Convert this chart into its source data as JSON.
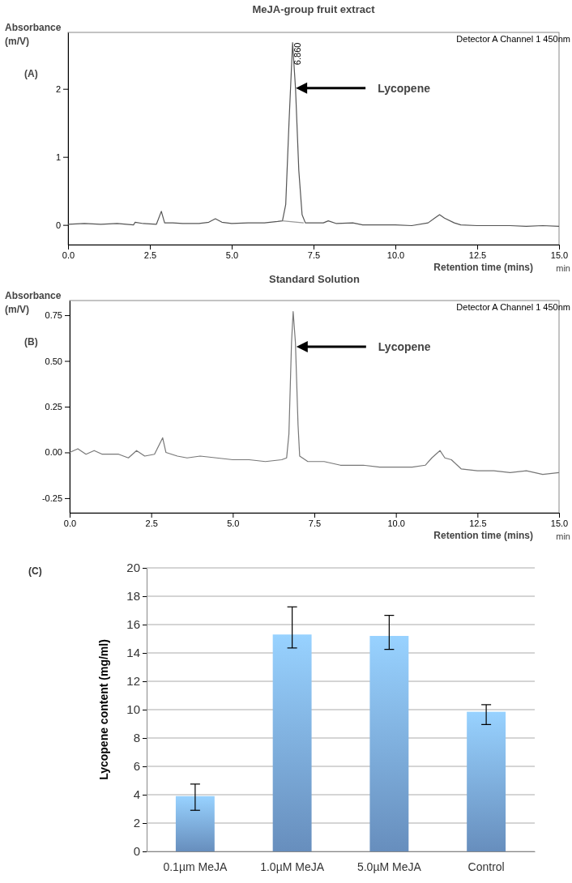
{
  "chart_data": [
    {
      "type": "line",
      "title": "MeJA-group fruit extract",
      "xlabel": "Retention time (mins)",
      "ylabel": "Absorbance (m/V)",
      "xlim": [
        0,
        15
      ],
      "ylim": [
        -0.29,
        2.83
      ],
      "xticks": [
        {
          "value": 0,
          "label": "0.0"
        },
        {
          "value": 2.5,
          "label": "2.5"
        },
        {
          "value": 5,
          "label": "5.0"
        },
        {
          "value": 7.5,
          "label": "7.5"
        },
        {
          "value": 10,
          "label": "10.0"
        },
        {
          "value": 12.5,
          "label": "12.5"
        },
        {
          "value": 15,
          "label": "15.0"
        }
      ],
      "yticks": [
        0,
        1,
        2
      ],
      "series": [
        {
          "color": "#555555",
          "x": [
            0,
            0.5,
            1,
            1.5,
            2,
            2.05,
            2.3,
            2.7,
            2.85,
            2.95,
            3.2,
            3.5,
            4,
            4.3,
            4.5,
            4.7,
            5,
            5.5,
            6,
            6.4,
            6.55,
            6.65,
            6.75,
            6.86,
            6.95,
            7.05,
            7.15,
            7.25,
            7.5,
            7.8,
            7.95,
            8.2,
            8.7,
            9,
            9.5,
            10,
            10.5,
            11,
            11.2,
            11.35,
            11.5,
            11.8,
            12,
            12.5,
            13,
            13.5,
            14,
            14.5,
            15
          ],
          "values": [
            0.01,
            0.02,
            0.01,
            0.02,
            0,
            0.04,
            0.02,
            0.01,
            0.2,
            0.03,
            0.03,
            0.02,
            0.02,
            0.04,
            0.09,
            0.04,
            0.02,
            0.03,
            0.03,
            0.05,
            0.06,
            0.3,
            1.5,
            2.68,
            2,
            0.8,
            0.15,
            0.03,
            0.03,
            0.03,
            0.06,
            0.02,
            0.03,
            0,
            0,
            0,
            -0.01,
            0.03,
            0.1,
            0.15,
            0.1,
            0.03,
            0,
            -0.01,
            -0.01,
            -0.01,
            -0.02,
            -0.01,
            -0.02
          ]
        },
        {
          "color": "#999999",
          "x": [
            6.55,
            7.2
          ],
          "values": [
            0.06,
            0.03
          ]
        }
      ],
      "annotations": [
        "Detector A Channel 1 450nm",
        "(A)",
        "min",
        "Lycopene",
        {
          "text": "6.860",
          "x": 6.86,
          "y": 2.68
        }
      ]
    },
    {
      "type": "line",
      "title": "Standard Solution",
      "xlabel": "Retention time (mins)",
      "ylabel": "Absorbance (m/V)",
      "xlim": [
        0,
        15
      ],
      "ylim": [
        -0.33,
        0.83
      ],
      "xticks": [
        {
          "value": 0,
          "label": "0.0"
        },
        {
          "value": 2.5,
          "label": "2.5"
        },
        {
          "value": 5,
          "label": "5.0"
        },
        {
          "value": 7.5,
          "label": "7.5"
        },
        {
          "value": 10,
          "label": "10.0"
        },
        {
          "value": 12.5,
          "label": "12.5"
        },
        {
          "value": 15,
          "label": "15.0"
        }
      ],
      "yticks": [
        {
          "value": -0.25,
          "label": "-0.25"
        },
        {
          "value": 0,
          "label": "0.00"
        },
        {
          "value": 0.25,
          "label": "0.25"
        },
        {
          "value": 0.5,
          "label": "0.50"
        },
        {
          "value": 0.75,
          "label": "0.75"
        }
      ],
      "series": [
        {
          "color": "#777777",
          "x": [
            0,
            0.25,
            0.5,
            0.75,
            1,
            1.5,
            1.8,
            2.05,
            2.3,
            2.6,
            2.85,
            2.95,
            3.3,
            3.6,
            4,
            4.5,
            5,
            5.5,
            6,
            6.5,
            6.65,
            6.72,
            6.8,
            6.85,
            6.92,
            7,
            7.05,
            7.3,
            7.8,
            8.3,
            9,
            9.5,
            10,
            10.5,
            10.9,
            11.1,
            11.35,
            11.5,
            11.7,
            12,
            12.5,
            13,
            13.5,
            14,
            14.5,
            15
          ],
          "values": [
            0,
            0.02,
            -0.01,
            0.01,
            -0.01,
            -0.01,
            -0.03,
            0.01,
            -0.02,
            -0.01,
            0.08,
            0,
            -0.02,
            -0.03,
            -0.02,
            -0.03,
            -0.04,
            -0.04,
            -0.05,
            -0.04,
            -0.03,
            0.1,
            0.6,
            0.77,
            0.6,
            0.15,
            -0.02,
            -0.05,
            -0.05,
            -0.07,
            -0.07,
            -0.08,
            -0.08,
            -0.08,
            -0.07,
            -0.03,
            0.01,
            -0.03,
            -0.04,
            -0.09,
            -0.1,
            -0.1,
            -0.11,
            -0.1,
            -0.12,
            -0.11
          ]
        }
      ],
      "annotations": [
        "Detector A Channel 1 450nm",
        "(B)",
        "min",
        "Lycopene"
      ]
    },
    {
      "type": "bar",
      "ylabel": "Lycopene content (mg/ml)",
      "categories": [
        "0.1µm MeJA",
        "1.0µM MeJA",
        "5.0µM MeJA",
        "Control"
      ],
      "values": [
        3.9,
        15.3,
        15.2,
        9.85
      ],
      "color": "#7fb0ea",
      "errors": [
        [
          2.9,
          4.75
        ],
        [
          14.35,
          17.25
        ],
        [
          14.25,
          16.65
        ],
        [
          8.95,
          10.35
        ]
      ],
      "ylim": [
        0,
        20
      ],
      "yticks": [
        0,
        2,
        4,
        6,
        8,
        10,
        12,
        14,
        16,
        18,
        20
      ],
      "grid": "y",
      "annotations": [
        "(C)"
      ]
    }
  ]
}
